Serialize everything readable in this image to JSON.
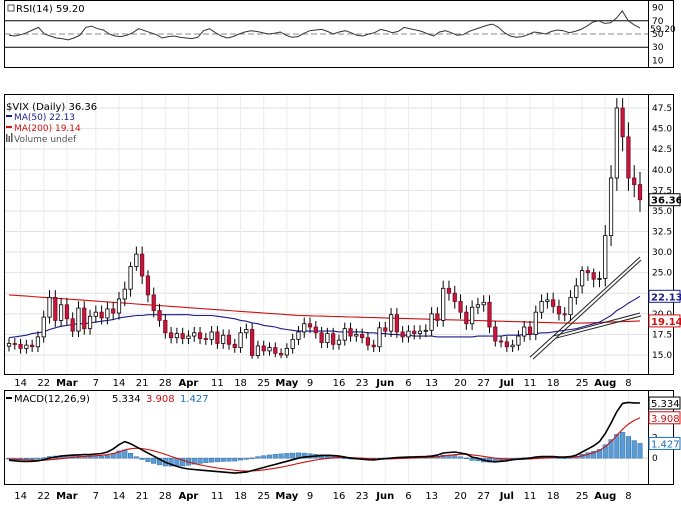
{
  "chart_data": [
    {
      "type": "line",
      "panel": "rsi",
      "legend": "RSI(14) 59.20",
      "ticks": [
        90,
        70,
        50,
        30,
        10
      ],
      "reference_lines": [
        70,
        30
      ],
      "ylim": [
        0,
        100
      ],
      "current_value_label": "59.20",
      "series": [
        {
          "values": [
            48,
            47,
            49,
            52,
            56,
            60,
            50,
            47,
            44,
            43,
            41,
            44,
            48,
            60,
            62,
            58,
            56,
            50,
            47,
            46,
            48,
            52,
            58,
            55,
            52,
            49,
            44,
            46,
            47,
            45,
            44,
            43,
            45,
            55,
            58,
            52,
            47,
            44,
            46,
            50,
            53,
            55,
            54,
            52,
            50,
            51,
            53,
            48,
            45,
            46,
            51,
            55,
            56,
            57,
            54,
            50,
            53,
            55,
            52,
            48,
            47,
            50,
            52,
            57,
            55,
            52,
            54,
            60,
            58,
            56,
            54,
            50,
            47,
            53,
            55,
            52,
            48,
            49,
            54,
            57,
            60,
            63,
            65,
            60,
            52,
            47,
            45,
            46,
            49,
            53,
            52,
            50,
            54,
            56,
            55,
            52,
            54,
            57,
            62,
            68,
            70,
            66,
            67,
            74,
            85,
            70,
            64,
            59.2
          ]
        }
      ]
    },
    {
      "type": "candlestick",
      "panel": "price",
      "legend": [
        {
          "name": "$VIX (Daily) 36.36",
          "color": "#000000"
        },
        {
          "name": "MA(50) 22.13",
          "color": "#1c1c8c"
        },
        {
          "name": "MA(200) 19.14",
          "color": "#cc1111"
        },
        {
          "name": "Volume undef",
          "color": "#555555"
        }
      ],
      "y_ticks": [
        "47.5",
        "45.0",
        "42.5",
        "40.0",
        "37.5",
        "35.0",
        "32.5",
        "30.0",
        "25.0",
        "22.5",
        "20.0",
        "17.5",
        "15.0"
      ],
      "price_labels": [
        {
          "text": "36.36",
          "value": 36.36,
          "bg": "#ffffff",
          "fg": "#000000"
        },
        {
          "text": "22.13",
          "value": 22.13,
          "bg": "#ffffff",
          "fg": "#1c1c8c"
        },
        {
          "text": "19.14",
          "value": 19.14,
          "bg": "#ffffff",
          "fg": "#cc1111"
        }
      ],
      "x_labels": [
        "14",
        "22",
        "Mar",
        "7",
        "14",
        "21",
        "28",
        "Apr",
        "11",
        "18",
        "25",
        "May",
        "9",
        "16",
        "23",
        "Jun",
        "6",
        "13",
        "20",
        "27",
        "Jul",
        "11",
        "18",
        "25",
        "Aug",
        "8"
      ],
      "close": [
        16.4,
        16.3,
        15.8,
        16.2,
        16.0,
        17.2,
        19.6,
        22.0,
        19.2,
        21.1,
        19.4,
        17.9,
        20.7,
        18.2,
        19.7,
        20.2,
        19.5,
        20.6,
        20.1,
        21.8,
        23.0,
        26.5,
        29.5,
        24.6,
        22.3,
        20.4,
        19.2,
        17.7,
        17.1,
        17.6,
        17.0,
        17.3,
        17.7,
        17.0,
        16.9,
        17.8,
        16.4,
        17.4,
        16.3,
        15.9,
        17.7,
        18.1,
        14.9,
        16.1,
        15.5,
        15.9,
        15.2,
        15.0,
        15.8,
        16.9,
        17.8,
        18.8,
        18.4,
        17.7,
        16.5,
        17.6,
        16.3,
        16.8,
        18.2,
        17.3,
        17.5,
        17.1,
        16.2,
        16.0,
        18.3,
        17.9,
        19.9,
        17.8,
        17.2,
        17.9,
        17.6,
        17.9,
        18.0,
        20.0,
        19.2,
        23.1,
        22.5,
        21.5,
        20.2,
        18.8,
        20.8,
        21.1,
        21.4,
        18.4,
        16.7,
        16.6,
        16.0,
        16.2,
        17.3,
        18.4,
        17.5,
        20.2,
        21.5,
        21.7,
        20.9,
        20.0,
        19.9,
        22.0,
        23.4,
        25.5,
        25.0,
        24.2,
        24.3,
        32.0,
        39.0,
        47.5,
        44.0,
        39.0,
        38.2,
        36.36
      ],
      "ma50": [
        17.1,
        17.2,
        17.3,
        17.4,
        17.6,
        17.7,
        17.8,
        18.1,
        18.3,
        18.5,
        18.6,
        18.7,
        18.8,
        18.8,
        18.9,
        19.0,
        19.1,
        19.2,
        19.3,
        19.5,
        19.6,
        19.7,
        19.8,
        19.8,
        19.9,
        19.9,
        19.9,
        19.9,
        19.9,
        19.9,
        19.9,
        19.9,
        19.8,
        19.8,
        19.8,
        19.8,
        19.7,
        19.6,
        19.5,
        19.4,
        19.2,
        19.1,
        18.9,
        18.8,
        18.6,
        18.5,
        18.4,
        18.2,
        18.1,
        18.0,
        17.9,
        17.9,
        17.9,
        17.9,
        17.9,
        17.9,
        17.9,
        17.8,
        17.8,
        17.8,
        17.8,
        17.8,
        17.7,
        17.7,
        17.6,
        17.6,
        17.5,
        17.5,
        17.4,
        17.4,
        17.3,
        17.3,
        17.3,
        17.3,
        17.2,
        17.2,
        17.2,
        17.2,
        17.2,
        17.2,
        17.2,
        17.3,
        17.3,
        17.3,
        17.3,
        17.3,
        17.4,
        17.4,
        17.4,
        17.5,
        17.5,
        17.6,
        17.7,
        17.7,
        17.8,
        17.9,
        18.0,
        18.1,
        18.2,
        18.4,
        18.6,
        18.8,
        19.0,
        19.4,
        19.8,
        20.4,
        20.8,
        21.3,
        21.7,
        22.13
      ],
      "ma200": [
        22.3,
        22.25,
        22.2,
        22.15,
        22.1,
        22.05,
        22.0,
        21.95,
        21.9,
        21.85,
        21.8,
        21.75,
        21.7,
        21.65,
        21.6,
        21.55,
        21.5,
        21.45,
        21.4,
        21.35,
        21.3,
        21.25,
        21.2,
        21.15,
        21.1,
        21.05,
        21.0,
        20.95,
        20.9,
        20.85,
        20.8,
        20.75,
        20.7,
        20.65,
        20.6,
        20.55,
        20.5,
        20.45,
        20.4,
        20.35,
        20.3,
        20.25,
        20.2,
        20.15,
        20.1,
        20.05,
        20.0,
        19.95,
        19.9,
        19.85,
        19.8,
        19.78,
        19.76,
        19.74,
        19.72,
        19.7,
        19.68,
        19.66,
        19.64,
        19.62,
        19.6,
        19.58,
        19.56,
        19.54,
        19.52,
        19.5,
        19.48,
        19.46,
        19.44,
        19.42,
        19.4,
        19.38,
        19.36,
        19.34,
        19.32,
        19.3,
        19.28,
        19.26,
        19.24,
        19.22,
        19.2,
        19.18,
        19.16,
        19.14,
        19.12,
        19.1,
        19.08,
        19.06,
        19.04,
        19.02,
        19.0,
        18.98,
        18.96,
        18.94,
        18.92,
        18.9,
        18.88,
        18.86,
        18.86,
        18.88,
        18.9,
        18.92,
        18.95,
        18.98,
        19.0,
        19.03,
        19.06,
        19.08,
        19.11,
        19.14
      ],
      "trendlines": [
        {
          "from": [
            90,
            14.6
          ],
          "to": [
            109,
            28.8
          ]
        },
        {
          "from": [
            94,
            17.3
          ],
          "to": [
            109,
            20.1
          ]
        }
      ]
    },
    {
      "type": "line",
      "panel": "macd",
      "legend": [
        {
          "name": "MACD(12,26,9)",
          "color": "#000000"
        },
        {
          "name": "5.334",
          "color": "#000000"
        },
        {
          "name": "3.908",
          "color": "#cc1111"
        },
        {
          "name": "1.427",
          "color": "#1a6fb5"
        }
      ],
      "y_ticks": [
        "4",
        "2",
        "0"
      ],
      "ylim": [
        -2.5,
        6.5
      ],
      "price_labels": [
        {
          "text": "5.334",
          "value": 5.334,
          "fg": "#000000"
        },
        {
          "text": "3.908",
          "value": 3.908,
          "fg": "#cc1111"
        },
        {
          "text": "1.427",
          "value": 1.427,
          "fg": "#1a6fb5"
        }
      ],
      "macd": [
        -0.2,
        -0.25,
        -0.3,
        -0.32,
        -0.3,
        -0.25,
        -0.15,
        0.0,
        0.1,
        0.2,
        0.25,
        0.3,
        0.32,
        0.35,
        0.35,
        0.4,
        0.45,
        0.6,
        0.9,
        1.3,
        1.6,
        1.4,
        1.1,
        0.8,
        0.5,
        0.2,
        -0.1,
        -0.4,
        -0.6,
        -0.8,
        -0.95,
        -1.05,
        -1.1,
        -1.15,
        -1.2,
        -1.25,
        -1.3,
        -1.35,
        -1.4,
        -1.45,
        -1.4,
        -1.35,
        -1.2,
        -1.05,
        -0.9,
        -0.75,
        -0.6,
        -0.45,
        -0.3,
        -0.15,
        0.0,
        0.1,
        0.15,
        0.2,
        0.25,
        0.28,
        0.25,
        0.2,
        0.1,
        0.0,
        -0.05,
        -0.1,
        -0.15,
        -0.18,
        -0.1,
        -0.05,
        0.0,
        0.05,
        0.08,
        0.1,
        0.12,
        0.14,
        0.15,
        0.2,
        0.3,
        0.5,
        0.55,
        0.6,
        0.5,
        0.4,
        0.1,
        0.0,
        -0.2,
        -0.3,
        -0.35,
        -0.3,
        -0.25,
        -0.15,
        -0.1,
        -0.05,
        0.0,
        0.1,
        0.15,
        0.15,
        0.15,
        0.1,
        0.1,
        0.15,
        0.3,
        0.6,
        0.9,
        1.2,
        1.6,
        2.4,
        3.4,
        4.5,
        5.3,
        5.4,
        5.35,
        5.334
      ],
      "signal": [
        -0.1,
        -0.12,
        -0.15,
        -0.18,
        -0.2,
        -0.21,
        -0.2,
        -0.16,
        -0.11,
        -0.05,
        0.01,
        0.07,
        0.12,
        0.17,
        0.2,
        0.24,
        0.28,
        0.34,
        0.45,
        0.6,
        0.8,
        0.92,
        0.96,
        0.93,
        0.84,
        0.71,
        0.55,
        0.36,
        0.17,
        -0.02,
        -0.2,
        -0.37,
        -0.52,
        -0.64,
        -0.76,
        -0.86,
        -0.95,
        -1.03,
        -1.1,
        -1.17,
        -1.22,
        -1.24,
        -1.23,
        -1.2,
        -1.14,
        -1.06,
        -0.97,
        -0.87,
        -0.76,
        -0.64,
        -0.51,
        -0.39,
        -0.28,
        -0.18,
        -0.09,
        -0.02,
        0.03,
        0.06,
        0.07,
        0.05,
        0.03,
        0.0,
        -0.03,
        -0.06,
        -0.07,
        -0.07,
        -0.06,
        -0.04,
        -0.02,
        0.0,
        0.02,
        0.05,
        0.07,
        0.1,
        0.14,
        0.21,
        0.28,
        0.34,
        0.37,
        0.38,
        0.32,
        0.26,
        0.17,
        0.08,
        0.0,
        -0.06,
        -0.1,
        -0.11,
        -0.11,
        -0.1,
        -0.08,
        -0.04,
        0.0,
        0.03,
        0.05,
        0.06,
        0.07,
        0.09,
        0.13,
        0.22,
        0.36,
        0.53,
        0.76,
        1.1,
        1.6,
        2.2,
        2.8,
        3.3,
        3.65,
        3.908
      ]
    }
  ]
}
